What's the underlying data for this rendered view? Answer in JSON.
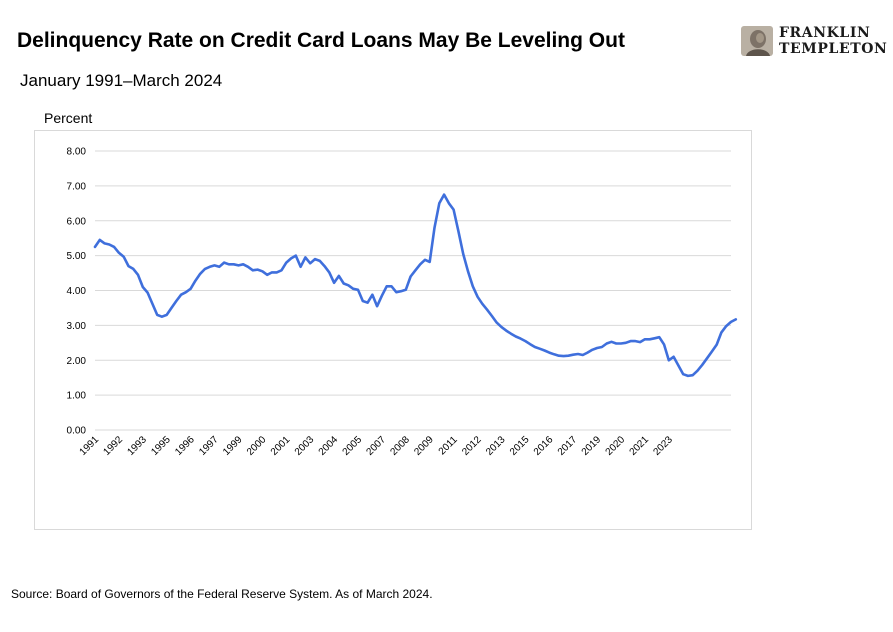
{
  "header": {
    "title": "Delinquency Rate on Credit Card Loans May Be Leveling Out",
    "subtitle": "January 1991–March 2024"
  },
  "brand": {
    "logo_icon": "franklin-portrait-icon",
    "line1": "FRANKLIN",
    "line2": "TEMPLETON"
  },
  "footer": {
    "source": "Source: Board of Governors of the Federal Reserve System. As of March 2024."
  },
  "colors": {
    "line": "#3f6fdc",
    "grid": "#d9d9d9"
  },
  "chart_data": {
    "type": "line",
    "ylabel": "Percent",
    "ylim": [
      0,
      8
    ],
    "yticks": [
      "0.00",
      "1.00",
      "2.00",
      "3.00",
      "4.00",
      "5.00",
      "6.00",
      "7.00",
      "8.00"
    ],
    "xlim": [
      1991.0,
      2024.25
    ],
    "xticks": [
      {
        "label": "1991",
        "x": 1991.0
      },
      {
        "label": "1992",
        "x": 1992.25
      },
      {
        "label": "1993",
        "x": 1993.5
      },
      {
        "label": "1995",
        "x": 1994.75
      },
      {
        "label": "1996",
        "x": 1996.0
      },
      {
        "label": "1997",
        "x": 1997.25
      },
      {
        "label": "1999",
        "x": 1998.5
      },
      {
        "label": "2000",
        "x": 1999.75
      },
      {
        "label": "2001",
        "x": 2001.0
      },
      {
        "label": "2003",
        "x": 2002.25
      },
      {
        "label": "2004",
        "x": 2003.5
      },
      {
        "label": "2005",
        "x": 2004.75
      },
      {
        "label": "2007",
        "x": 2006.0
      },
      {
        "label": "2008",
        "x": 2007.25
      },
      {
        "label": "2009",
        "x": 2008.5
      },
      {
        "label": "2011",
        "x": 2009.75
      },
      {
        "label": "2012",
        "x": 2011.0
      },
      {
        "label": "2013",
        "x": 2012.25
      },
      {
        "label": "2015",
        "x": 2013.5
      },
      {
        "label": "2016",
        "x": 2014.75
      },
      {
        "label": "2017",
        "x": 2016.0
      },
      {
        "label": "2019",
        "x": 2017.25
      },
      {
        "label": "2020",
        "x": 2018.5
      },
      {
        "label": "2021",
        "x": 2019.75
      },
      {
        "label": "2023",
        "x": 2021.0
      }
    ],
    "grid": "horizontal",
    "legend": "none",
    "series": [
      {
        "values": [
          [
            1991.0,
            5.25
          ],
          [
            1991.25,
            5.45
          ],
          [
            1991.5,
            5.35
          ],
          [
            1991.75,
            5.32
          ],
          [
            1992.0,
            5.25
          ],
          [
            1992.25,
            5.08
          ],
          [
            1992.5,
            4.97
          ],
          [
            1992.75,
            4.7
          ],
          [
            1993.0,
            4.62
          ],
          [
            1993.25,
            4.45
          ],
          [
            1993.5,
            4.1
          ],
          [
            1993.75,
            3.94
          ],
          [
            1994.0,
            3.62
          ],
          [
            1994.25,
            3.3
          ],
          [
            1994.5,
            3.25
          ],
          [
            1994.75,
            3.3
          ],
          [
            1995.0,
            3.5
          ],
          [
            1995.25,
            3.7
          ],
          [
            1995.5,
            3.88
          ],
          [
            1995.75,
            3.95
          ],
          [
            1996.0,
            4.05
          ],
          [
            1996.25,
            4.28
          ],
          [
            1996.5,
            4.48
          ],
          [
            1996.75,
            4.62
          ],
          [
            1997.0,
            4.68
          ],
          [
            1997.25,
            4.72
          ],
          [
            1997.5,
            4.68
          ],
          [
            1997.75,
            4.8
          ],
          [
            1998.0,
            4.75
          ],
          [
            1998.25,
            4.75
          ],
          [
            1998.5,
            4.72
          ],
          [
            1998.75,
            4.75
          ],
          [
            1999.0,
            4.68
          ],
          [
            1999.25,
            4.58
          ],
          [
            1999.5,
            4.6
          ],
          [
            1999.75,
            4.55
          ],
          [
            2000.0,
            4.45
          ],
          [
            2000.25,
            4.52
          ],
          [
            2000.5,
            4.52
          ],
          [
            2000.75,
            4.58
          ],
          [
            2001.0,
            4.8
          ],
          [
            2001.25,
            4.92
          ],
          [
            2001.5,
            5.0
          ],
          [
            2001.75,
            4.68
          ],
          [
            2002.0,
            4.95
          ],
          [
            2002.25,
            4.78
          ],
          [
            2002.5,
            4.9
          ],
          [
            2002.75,
            4.85
          ],
          [
            2003.0,
            4.7
          ],
          [
            2003.25,
            4.52
          ],
          [
            2003.5,
            4.22
          ],
          [
            2003.75,
            4.42
          ],
          [
            2004.0,
            4.2
          ],
          [
            2004.25,
            4.15
          ],
          [
            2004.5,
            4.05
          ],
          [
            2004.75,
            4.02
          ],
          [
            2005.0,
            3.7
          ],
          [
            2005.25,
            3.65
          ],
          [
            2005.5,
            3.88
          ],
          [
            2005.75,
            3.55
          ],
          [
            2006.0,
            3.85
          ],
          [
            2006.25,
            4.12
          ],
          [
            2006.5,
            4.12
          ],
          [
            2006.75,
            3.95
          ],
          [
            2007.0,
            3.98
          ],
          [
            2007.25,
            4.02
          ],
          [
            2007.5,
            4.4
          ],
          [
            2007.75,
            4.58
          ],
          [
            2008.0,
            4.75
          ],
          [
            2008.25,
            4.88
          ],
          [
            2008.5,
            4.82
          ],
          [
            2008.75,
            5.8
          ],
          [
            2009.0,
            6.5
          ],
          [
            2009.25,
            6.75
          ],
          [
            2009.5,
            6.5
          ],
          [
            2009.75,
            6.32
          ],
          [
            2010.0,
            5.7
          ],
          [
            2010.25,
            5.05
          ],
          [
            2010.5,
            4.55
          ],
          [
            2010.75,
            4.12
          ],
          [
            2011.0,
            3.82
          ],
          [
            2011.25,
            3.62
          ],
          [
            2011.5,
            3.45
          ],
          [
            2011.75,
            3.27
          ],
          [
            2012.0,
            3.08
          ],
          [
            2012.25,
            2.95
          ],
          [
            2012.5,
            2.85
          ],
          [
            2012.75,
            2.76
          ],
          [
            2013.0,
            2.68
          ],
          [
            2013.25,
            2.62
          ],
          [
            2013.5,
            2.55
          ],
          [
            2013.75,
            2.46
          ],
          [
            2014.0,
            2.38
          ],
          [
            2014.25,
            2.33
          ],
          [
            2014.5,
            2.28
          ],
          [
            2014.75,
            2.22
          ],
          [
            2015.0,
            2.17
          ],
          [
            2015.25,
            2.13
          ],
          [
            2015.5,
            2.12
          ],
          [
            2015.75,
            2.13
          ],
          [
            2016.0,
            2.16
          ],
          [
            2016.25,
            2.18
          ],
          [
            2016.5,
            2.15
          ],
          [
            2016.75,
            2.22
          ],
          [
            2017.0,
            2.3
          ],
          [
            2017.25,
            2.35
          ],
          [
            2017.5,
            2.38
          ],
          [
            2017.75,
            2.48
          ],
          [
            2018.0,
            2.53
          ],
          [
            2018.25,
            2.48
          ],
          [
            2018.5,
            2.48
          ],
          [
            2018.75,
            2.5
          ],
          [
            2019.0,
            2.55
          ],
          [
            2019.25,
            2.55
          ],
          [
            2019.5,
            2.52
          ],
          [
            2019.75,
            2.6
          ],
          [
            2020.0,
            2.6
          ],
          [
            2020.25,
            2.63
          ],
          [
            2020.5,
            2.66
          ],
          [
            2020.75,
            2.45
          ],
          [
            2021.0,
            2.0
          ],
          [
            2021.25,
            2.1
          ],
          [
            2021.5,
            1.85
          ],
          [
            2021.75,
            1.6
          ],
          [
            2022.0,
            1.55
          ],
          [
            2022.25,
            1.57
          ],
          [
            2022.5,
            1.7
          ],
          [
            2022.75,
            1.87
          ],
          [
            2023.0,
            2.06
          ],
          [
            2023.25,
            2.25
          ],
          [
            2023.5,
            2.45
          ],
          [
            2023.75,
            2.8
          ],
          [
            2024.0,
            2.98
          ],
          [
            2024.25,
            3.1
          ],
          [
            2024.5,
            3.17
          ]
        ]
      }
    ]
  }
}
